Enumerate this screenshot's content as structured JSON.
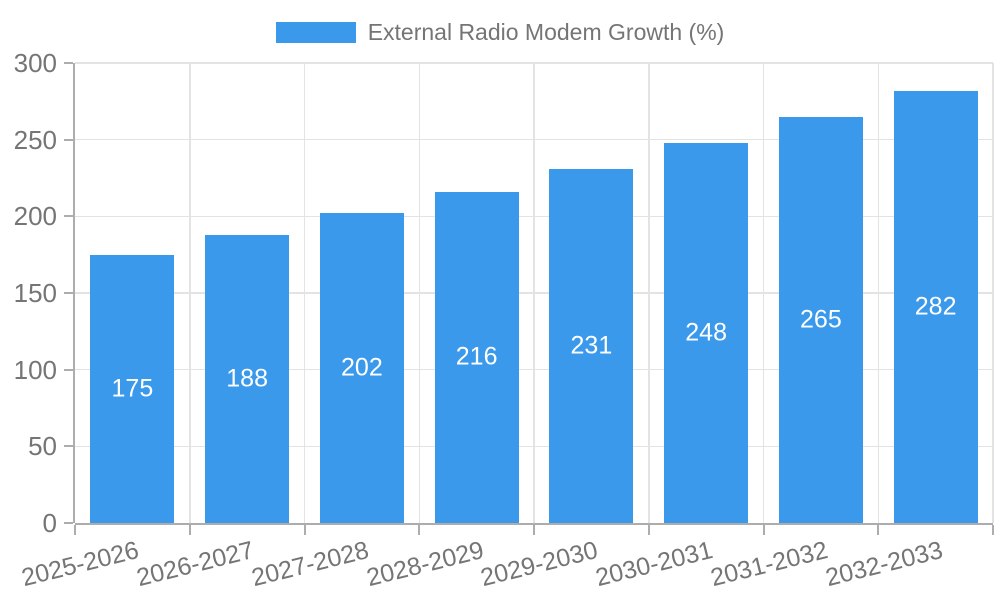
{
  "legend": {
    "series_label": "External Radio Modem Growth (%)"
  },
  "chart_data": {
    "type": "bar",
    "title": "External Radio Modem Growth (%)",
    "categories": [
      "2025-2026",
      "2026-2027",
      "2027-2028",
      "2028-2029",
      "2029-2030",
      "2030-2031",
      "2031-2032",
      "2032-2033"
    ],
    "values": [
      175,
      188,
      202,
      216,
      231,
      248,
      265,
      282
    ],
    "series": [
      {
        "name": "External Radio Modem Growth (%)",
        "values": [
          175,
          188,
          202,
          216,
          231,
          248,
          265,
          282
        ]
      }
    ],
    "xlabel": "",
    "ylabel": "",
    "ylim": [
      0,
      300
    ],
    "yticks": [
      0,
      50,
      100,
      150,
      200,
      250,
      300
    ],
    "grid": true,
    "legend_position": "top",
    "colors": {
      "bar": "#3B99EC",
      "bar_label": "#FFFFFF",
      "axis": "#ADADAD",
      "grid": "#E3E3E3",
      "tick_text": "#757575"
    }
  }
}
